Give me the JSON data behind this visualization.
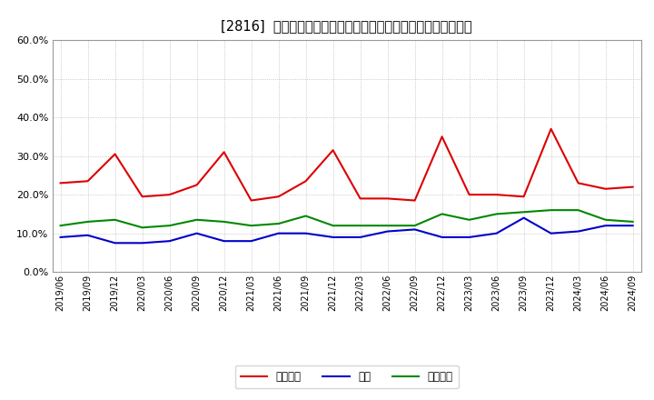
{
  "title": "[2816]  売上債権、在庫、買入債務の総資産に対する比率の推移",
  "dates": [
    "2019/06",
    "2019/09",
    "2019/12",
    "2020/03",
    "2020/06",
    "2020/09",
    "2020/12",
    "2021/03",
    "2021/06",
    "2021/09",
    "2021/12",
    "2022/03",
    "2022/06",
    "2022/09",
    "2022/12",
    "2023/03",
    "2023/06",
    "2023/09",
    "2023/12",
    "2024/03",
    "2024/06",
    "2024/09"
  ],
  "urikake": [
    23.0,
    23.5,
    30.5,
    19.5,
    20.0,
    22.5,
    31.0,
    18.5,
    19.5,
    23.5,
    31.5,
    19.0,
    19.0,
    18.5,
    35.0,
    20.0,
    20.0,
    19.5,
    37.0,
    23.0,
    21.5,
    22.0
  ],
  "zaiko": [
    9.0,
    9.5,
    7.5,
    7.5,
    8.0,
    10.0,
    8.0,
    8.0,
    10.0,
    10.0,
    9.0,
    9.0,
    10.5,
    11.0,
    9.0,
    9.0,
    10.0,
    14.0,
    10.0,
    10.5,
    12.0,
    12.0
  ],
  "kaiire": [
    12.0,
    13.0,
    13.5,
    11.5,
    12.0,
    13.5,
    13.0,
    12.0,
    12.5,
    14.5,
    12.0,
    12.0,
    12.0,
    12.0,
    15.0,
    13.5,
    15.0,
    15.5,
    16.0,
    16.0,
    13.5,
    13.0
  ],
  "urikake_color": "#dd0000",
  "zaiko_color": "#0000cc",
  "kaiire_color": "#008800",
  "ylim": [
    0,
    60
  ],
  "yticks": [
    0,
    10,
    20,
    30,
    40,
    50,
    60
  ],
  "legend_labels": [
    "売上債権",
    "在庫",
    "買入債務"
  ],
  "bg_color": "#ffffff",
  "grid_color": "#aaaaaa",
  "title_fontsize": 10.5
}
